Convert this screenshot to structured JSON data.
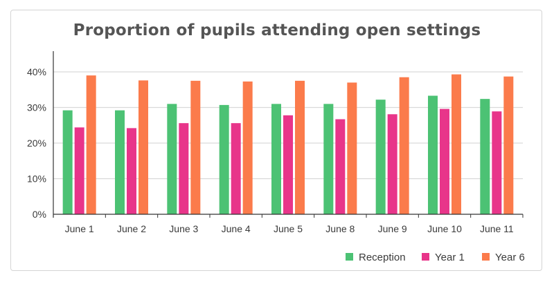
{
  "title": "Proportion of pupils attending open settings",
  "chart_data": {
    "type": "bar",
    "title": "Proportion of pupils attending open settings",
    "categories": [
      "June 1",
      "June 2",
      "June 3",
      "June 4",
      "June 5",
      "June 8",
      "June 9",
      "June 10",
      "June 11"
    ],
    "series": [
      {
        "name": "Reception",
        "color": "#4cc274",
        "values": [
          29.2,
          29.2,
          31.0,
          30.7,
          31.0,
          31.0,
          32.2,
          33.3,
          32.4
        ]
      },
      {
        "name": "Year 1",
        "color": "#e8358a",
        "values": [
          24.4,
          24.2,
          25.6,
          25.6,
          27.8,
          26.7,
          28.1,
          29.6,
          28.9
        ]
      },
      {
        "name": "Year 6",
        "color": "#fb7b4b",
        "values": [
          39.0,
          37.6,
          37.5,
          37.3,
          37.5,
          37.0,
          38.5,
          39.3,
          38.7
        ]
      }
    ],
    "yticks": [
      "0%",
      "10%",
      "20%",
      "30%",
      "40%"
    ],
    "ylim": [
      0,
      45
    ],
    "grid": true,
    "legend_position": "bottom-right",
    "xlabel": "",
    "ylabel": ""
  }
}
